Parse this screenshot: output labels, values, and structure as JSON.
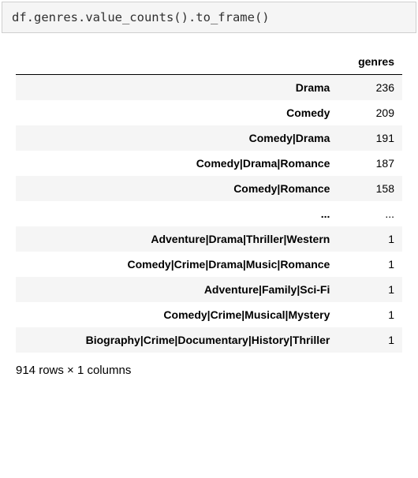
{
  "code_cell": {
    "source": "df.genres.value_counts().to_frame()"
  },
  "dataframe": {
    "column_header": "genres",
    "rows": [
      {
        "index": "Drama",
        "value": "236"
      },
      {
        "index": "Comedy",
        "value": "209"
      },
      {
        "index": "Comedy|Drama",
        "value": "191"
      },
      {
        "index": "Comedy|Drama|Romance",
        "value": "187"
      },
      {
        "index": "Comedy|Romance",
        "value": "158"
      },
      {
        "index": "...",
        "value": "..."
      },
      {
        "index": "Adventure|Drama|Thriller|Western",
        "value": "1"
      },
      {
        "index": "Comedy|Crime|Drama|Music|Romance",
        "value": "1"
      },
      {
        "index": "Adventure|Family|Sci-Fi",
        "value": "1"
      },
      {
        "index": "Comedy|Crime|Musical|Mystery",
        "value": "1"
      },
      {
        "index": "Biography|Crime|Documentary|History|Thriller",
        "value": "1"
      }
    ],
    "shape_note": "914 rows × 1 columns"
  }
}
